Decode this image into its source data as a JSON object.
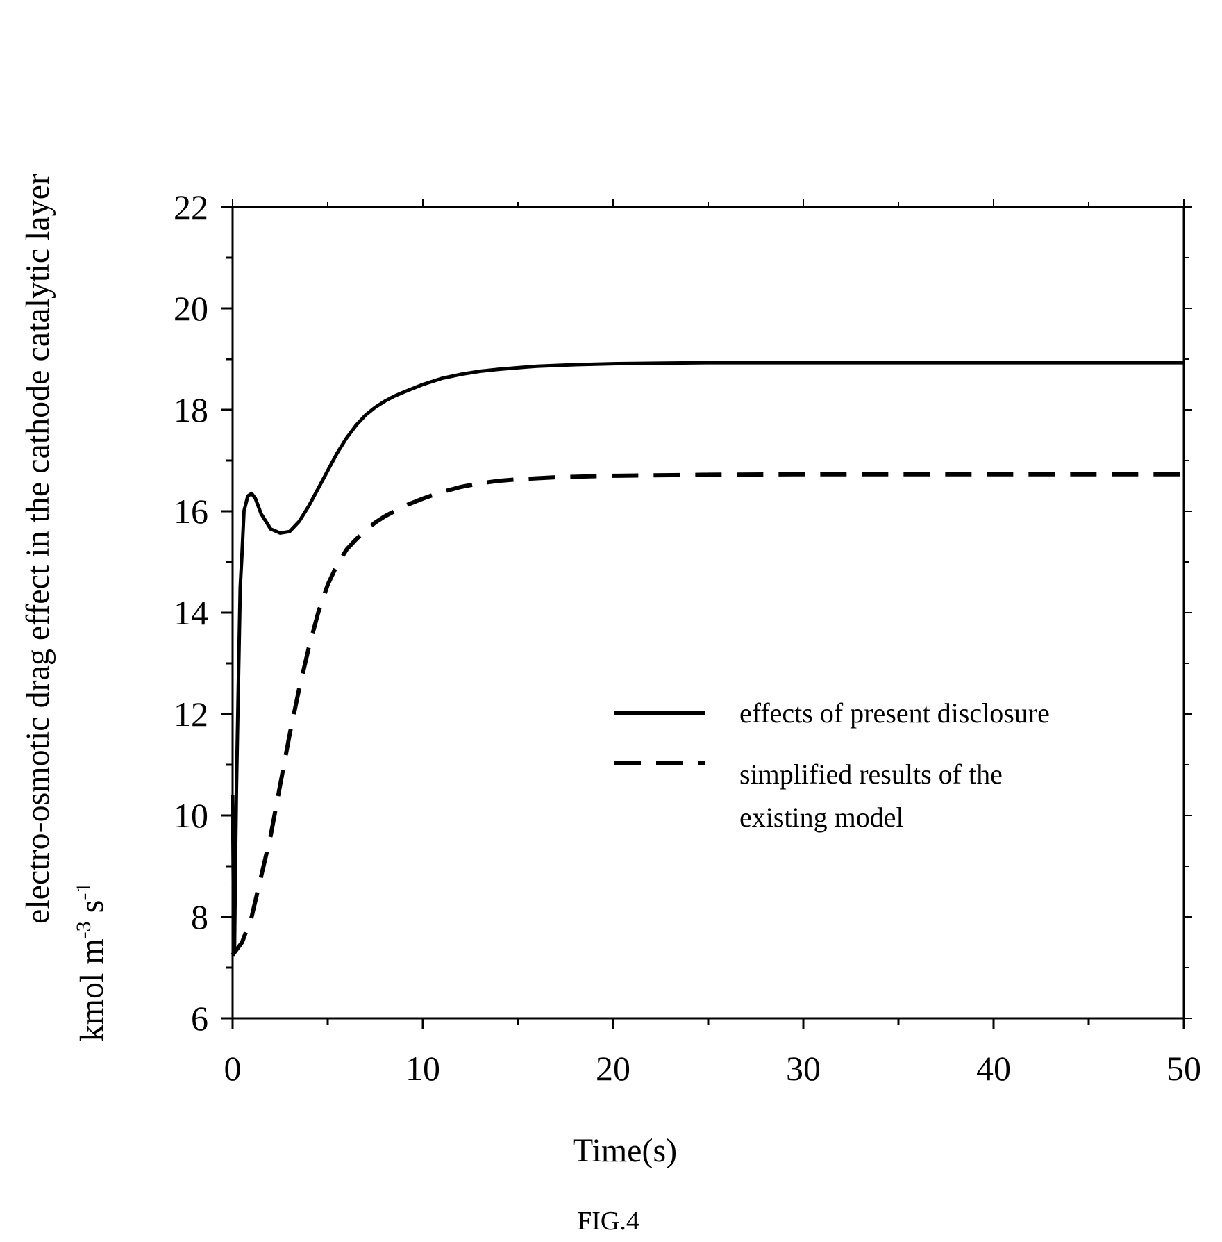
{
  "chart_data": {
    "type": "line",
    "xlabel": "Time(s)",
    "ylabel_line1": "electro-osmotic drag effect in the cathode catalytic layer",
    "ylabel_line2": {
      "text_a": "kmol m",
      "sup_a": "-3",
      "text_b": " s",
      "sup_b": "-1"
    },
    "xlim": [
      0,
      50
    ],
    "ylim": [
      6,
      22
    ],
    "x_ticks": [
      0,
      10,
      20,
      30,
      40,
      50
    ],
    "y_ticks": [
      6,
      8,
      10,
      12,
      14,
      16,
      18,
      20,
      22
    ],
    "x_minor_step": 5,
    "y_minor_step": 1,
    "grid": false,
    "legend_position": "right, middle",
    "series": [
      {
        "name": "effects of present disclosure",
        "style": "solid",
        "color": "#000000",
        "x": [
          0,
          0.05,
          0.1,
          0.15,
          0.2,
          0.3,
          0.4,
          0.5,
          0.6,
          0.8,
          1.0,
          1.2,
          1.5,
          2.0,
          2.5,
          3.0,
          3.5,
          4.0,
          4.5,
          5.0,
          5.5,
          6.0,
          6.5,
          7.0,
          7.5,
          8.0,
          8.5,
          9.0,
          10.0,
          11.0,
          12.0,
          13.0,
          14.0,
          15.0,
          16.0,
          18.0,
          20.0,
          25.0,
          30.0,
          40.0,
          50.0
        ],
        "y": [
          10.4,
          8.0,
          7.3,
          9.0,
          10.5,
          12.5,
          14.5,
          15.2,
          16.0,
          16.3,
          16.35,
          16.25,
          15.95,
          15.65,
          15.57,
          15.6,
          15.8,
          16.1,
          16.45,
          16.8,
          17.15,
          17.45,
          17.7,
          17.9,
          18.05,
          18.17,
          18.27,
          18.35,
          18.5,
          18.62,
          18.7,
          18.76,
          18.8,
          18.83,
          18.86,
          18.89,
          18.91,
          18.93,
          18.93,
          18.93,
          18.93
        ]
      },
      {
        "name": "simplified results of the existing model",
        "legend_line2": "existing model",
        "legend_line1": "simplified results of the",
        "style": "dashed",
        "color": "#000000",
        "x": [
          0,
          0.5,
          1.0,
          1.5,
          2.0,
          2.5,
          3.0,
          3.5,
          4.0,
          4.5,
          5.0,
          5.5,
          6.0,
          6.5,
          7.0,
          7.5,
          8.0,
          9.0,
          10.0,
          11.0,
          12.0,
          13.0,
          14.0,
          15.0,
          17.0,
          20.0,
          25.0,
          30.0,
          40.0,
          50.0
        ],
        "y": [
          7.25,
          7.5,
          8.0,
          8.8,
          9.6,
          10.6,
          11.6,
          12.5,
          13.3,
          14.0,
          14.55,
          14.95,
          15.25,
          15.45,
          15.62,
          15.78,
          15.9,
          16.1,
          16.25,
          16.38,
          16.48,
          16.55,
          16.6,
          16.63,
          16.67,
          16.7,
          16.72,
          16.73,
          16.73,
          16.73
        ]
      }
    ]
  },
  "caption": "FIG.4"
}
